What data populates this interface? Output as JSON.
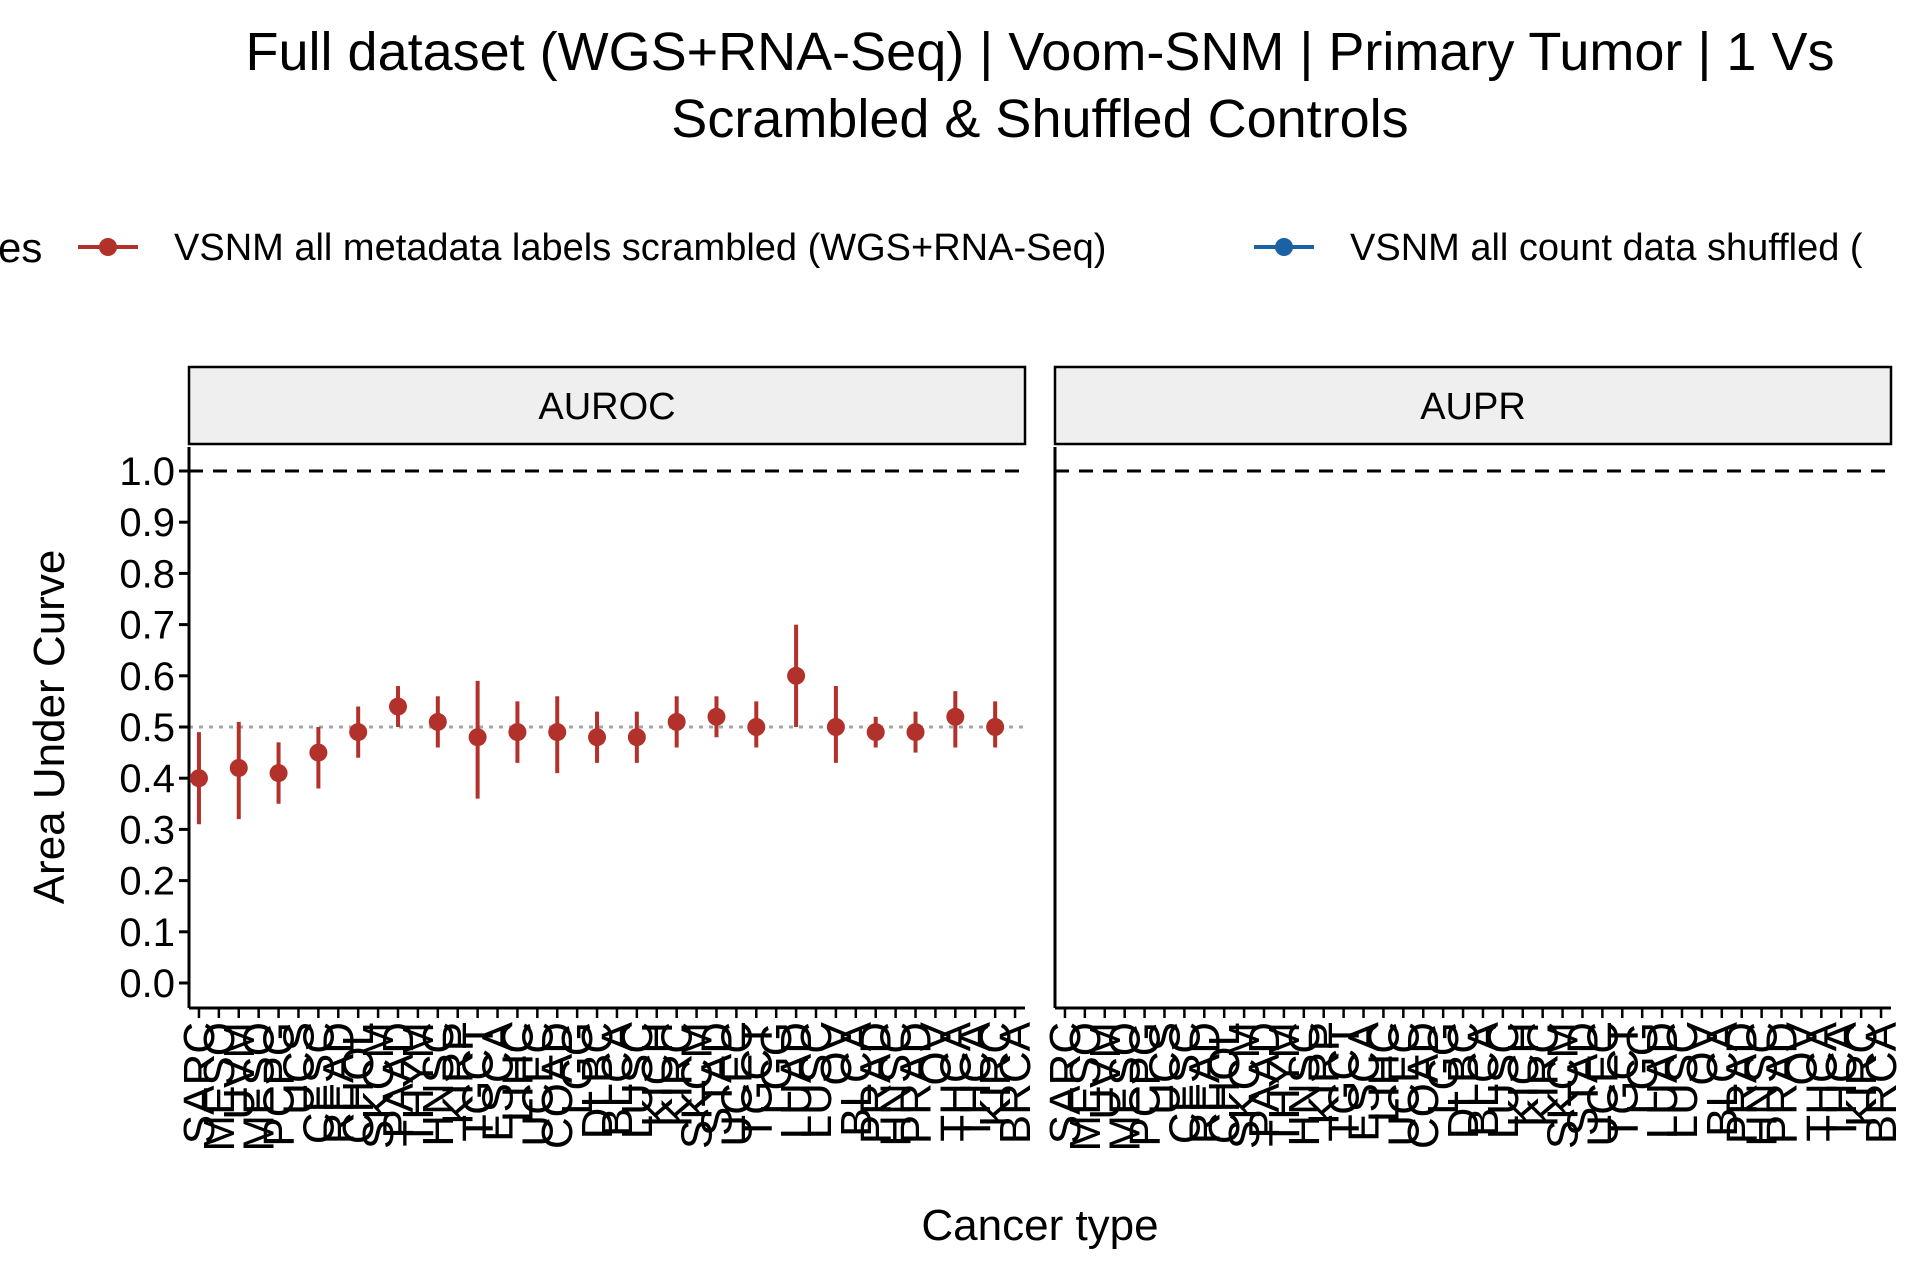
{
  "title": {
    "line1": "Full dataset (WGS+RNA-Seq) | Voom-SNM | Primary Tumor | 1 Vs",
    "line2": "Scrambled & Shuffled Controls"
  },
  "legend": {
    "title_fragment": "es",
    "items": [
      {
        "label": "VSNM all metadata labels scrambled (WGS+RNA-Seq)",
        "color": "#B2312B"
      },
      {
        "label": "VSNM all count data shuffled (",
        "color": "#1B62A5"
      }
    ]
  },
  "chart_data": {
    "type": "scatter",
    "xlabel": "Cancer type",
    "ylabel": "Area Under Curve",
    "ylim": [
      -0.05,
      1.05
    ],
    "yticks": [
      "0.0",
      "0.1",
      "0.2",
      "0.3",
      "0.4",
      "0.5",
      "0.6",
      "0.7",
      "0.8",
      "0.9",
      "1.0"
    ],
    "reference_lines": {
      "perfect": 1.0,
      "chance_auroc": 0.5
    },
    "panels": [
      {
        "name": "AUROC",
        "categories": [
          "SARC",
          "MESO",
          "UVM",
          "MESO",
          "PCPG",
          "UCS",
          "CESC",
          "READ",
          "CHOL",
          "SKCM",
          "PAAD",
          "THYM",
          "HNSC",
          "KIRP",
          "TGCT",
          "ESCA",
          "LIHC",
          "UCEC",
          "COAD",
          "LGG",
          "DLBC",
          "BLCA",
          "LUSC",
          "KICH",
          "KIRC",
          "SKCM",
          "STAD",
          "UCEC",
          "TGCT",
          "LGG",
          "LUAD",
          "LUSC",
          "OV",
          "BLCA",
          "PRAD",
          "HNSC",
          "PRAD",
          "OV",
          "THCA",
          "THCA",
          "KIRC",
          "BRCA"
        ],
        "series": [
          {
            "name": "VSNM all metadata labels scrambled (WGS+RNA-Seq)",
            "color": "#B2312B",
            "x": [
              1,
              3,
              5,
              7,
              9,
              11,
              13,
              15,
              17,
              19,
              21,
              23,
              25,
              27,
              29,
              31,
              33,
              35,
              37,
              39,
              41
            ],
            "y": [
              0.4,
              0.42,
              0.41,
              0.45,
              0.49,
              0.54,
              0.51,
              0.48,
              0.49,
              0.49,
              0.48,
              0.48,
              0.51,
              0.52,
              0.5,
              0.6,
              0.5,
              0.49,
              0.49,
              0.52,
              0.5
            ],
            "ylow": [
              0.31,
              0.32,
              0.35,
              0.38,
              0.44,
              0.5,
              0.46,
              0.36,
              0.43,
              0.41,
              0.43,
              0.43,
              0.46,
              0.48,
              0.46,
              0.5,
              0.43,
              0.46,
              0.45,
              0.46,
              0.46
            ],
            "yhigh": [
              0.49,
              0.51,
              0.47,
              0.5,
              0.54,
              0.58,
              0.56,
              0.59,
              0.55,
              0.56,
              0.53,
              0.53,
              0.56,
              0.56,
              0.55,
              0.7,
              0.58,
              0.52,
              0.53,
              0.57,
              0.55
            ]
          }
        ]
      },
      {
        "name": "AUPR",
        "categories": [
          "SARC",
          "MESO",
          "UVM",
          "MESO",
          "PCPG",
          "UCS",
          "CESC",
          "READ",
          "CHOL",
          "SKCM",
          "PAAD",
          "THYM",
          "HNSC",
          "KIRP",
          "TGCT",
          "ESCA",
          "LIHC",
          "UCEC",
          "COAD",
          "LGG",
          "DLBC",
          "BLCA",
          "LUSC",
          "KICH",
          "KIRC",
          "SKCM",
          "STAD",
          "UCEC",
          "TGCT",
          "LGG",
          "LUAD",
          "LUSC",
          "OV",
          "BLCA",
          "PRAD",
          "HNSC",
          "PRAD",
          "OV",
          "THCA",
          "THCA",
          "KIRC",
          "BRCA"
        ],
        "series": []
      }
    ]
  }
}
